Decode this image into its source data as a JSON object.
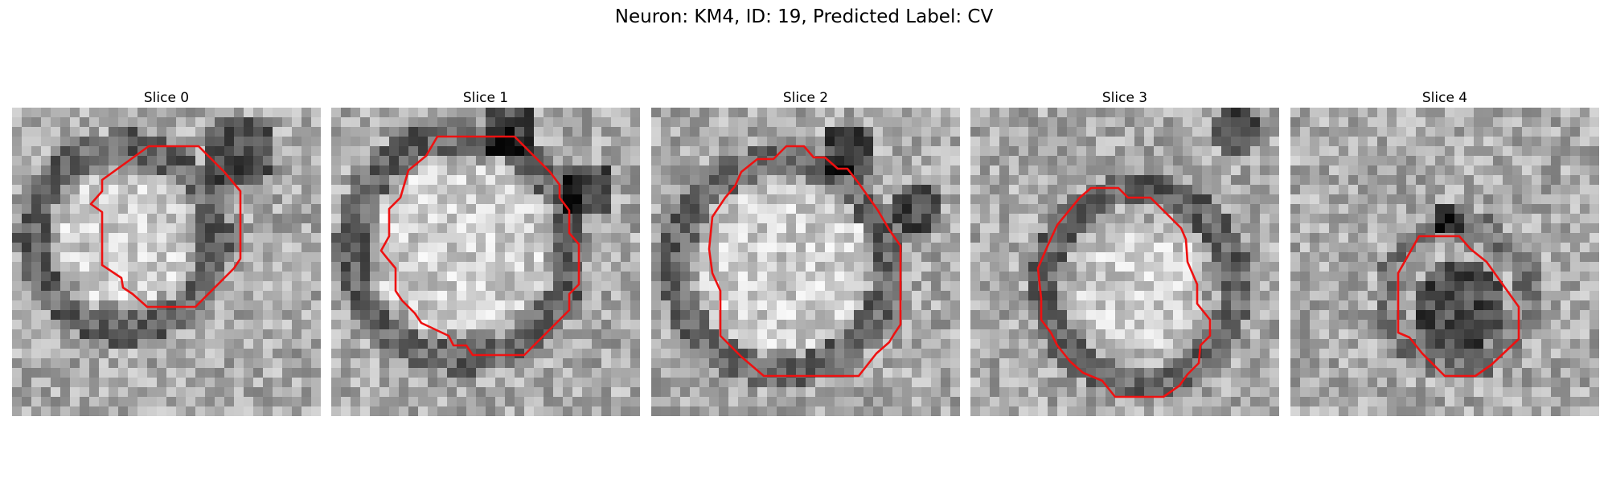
{
  "figure": {
    "title": "Neuron: KM4, ID: 19, Predicted Label: CV"
  },
  "panels": [
    {
      "title": "Slice 0"
    },
    {
      "title": "Slice 1"
    },
    {
      "title": "Slice 2"
    },
    {
      "title": "Slice 3"
    },
    {
      "title": "Slice 4"
    }
  ],
  "colors": {
    "contour": "#ee1111",
    "background": "#ffffff"
  }
}
